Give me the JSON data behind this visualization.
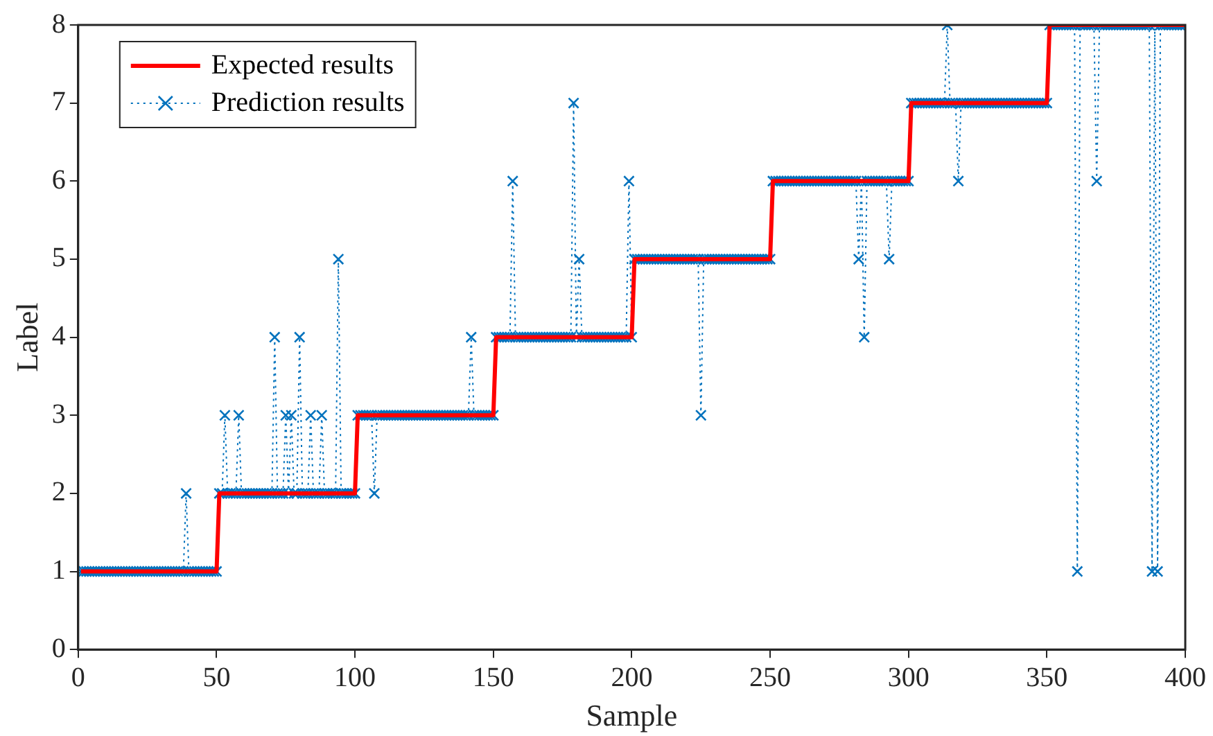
{
  "chart_data": {
    "type": "line",
    "xlabel": "Sample",
    "ylabel": "Label",
    "xlim": [
      0,
      400
    ],
    "xticks": [
      0,
      50,
      100,
      150,
      200,
      250,
      300,
      350,
      400
    ],
    "ylim": [
      0,
      8
    ],
    "yticks": [
      0,
      1,
      2,
      3,
      4,
      5,
      6,
      7,
      8
    ],
    "grid": false,
    "legend": "top left",
    "x": [
      1,
      2,
      3,
      4,
      5,
      6,
      7,
      8,
      9,
      10,
      11,
      12,
      13,
      14,
      15,
      16,
      17,
      18,
      19,
      20,
      21,
      22,
      23,
      24,
      25,
      26,
      27,
      28,
      29,
      30,
      31,
      32,
      33,
      34,
      35,
      36,
      37,
      38,
      39,
      40,
      41,
      42,
      43,
      44,
      45,
      46,
      47,
      48,
      49,
      50,
      51,
      52,
      53,
      54,
      55,
      56,
      57,
      58,
      59,
      60,
      61,
      62,
      63,
      64,
      65,
      66,
      67,
      68,
      69,
      70,
      71,
      72,
      73,
      74,
      75,
      76,
      77,
      78,
      79,
      80,
      81,
      82,
      83,
      84,
      85,
      86,
      87,
      88,
      89,
      90,
      91,
      92,
      93,
      94,
      95,
      96,
      97,
      98,
      99,
      100,
      101,
      102,
      103,
      104,
      105,
      106,
      107,
      108,
      109,
      110,
      111,
      112,
      113,
      114,
      115,
      116,
      117,
      118,
      119,
      120,
      121,
      122,
      123,
      124,
      125,
      126,
      127,
      128,
      129,
      130,
      131,
      132,
      133,
      134,
      135,
      136,
      137,
      138,
      139,
      140,
      141,
      142,
      143,
      144,
      145,
      146,
      147,
      148,
      149,
      150,
      151,
      152,
      153,
      154,
      155,
      156,
      157,
      158,
      159,
      160,
      161,
      162,
      163,
      164,
      165,
      166,
      167,
      168,
      169,
      170,
      171,
      172,
      173,
      174,
      175,
      176,
      177,
      178,
      179,
      180,
      181,
      182,
      183,
      184,
      185,
      186,
      187,
      188,
      189,
      190,
      191,
      192,
      193,
      194,
      195,
      196,
      197,
      198,
      199,
      200,
      201,
      202,
      203,
      204,
      205,
      206,
      207,
      208,
      209,
      210,
      211,
      212,
      213,
      214,
      215,
      216,
      217,
      218,
      219,
      220,
      221,
      222,
      223,
      224,
      225,
      226,
      227,
      228,
      229,
      230,
      231,
      232,
      233,
      234,
      235,
      236,
      237,
      238,
      239,
      240,
      241,
      242,
      243,
      244,
      245,
      246,
      247,
      248,
      249,
      250,
      251,
      252,
      253,
      254,
      255,
      256,
      257,
      258,
      259,
      260,
      261,
      262,
      263,
      264,
      265,
      266,
      267,
      268,
      269,
      270,
      271,
      272,
      273,
      274,
      275,
      276,
      277,
      278,
      279,
      280,
      281,
      282,
      283,
      284,
      285,
      286,
      287,
      288,
      289,
      290,
      291,
      292,
      293,
      294,
      295,
      296,
      297,
      298,
      299,
      300,
      301,
      302,
      303,
      304,
      305,
      306,
      307,
      308,
      309,
      310,
      311,
      312,
      313,
      314,
      315,
      316,
      317,
      318,
      319,
      320,
      321,
      322,
      323,
      324,
      325,
      326,
      327,
      328,
      329,
      330,
      331,
      332,
      333,
      334,
      335,
      336,
      337,
      338,
      339,
      340,
      341,
      342,
      343,
      344,
      345,
      346,
      347,
      348,
      349,
      350,
      351,
      352,
      353,
      354,
      355,
      356,
      357,
      358,
      359,
      360,
      361,
      362,
      363,
      364,
      365,
      366,
      367,
      368,
      369,
      370,
      371,
      372,
      373,
      374,
      375,
      376,
      377,
      378,
      379,
      380,
      381,
      382,
      383,
      384,
      385,
      386,
      387,
      388,
      389,
      390,
      391,
      392,
      393,
      394,
      395,
      396,
      397,
      398,
      399,
      400
    ],
    "series": [
      {
        "name": "Expected results",
        "color": "#ff0000",
        "line_style": "solid",
        "marker": "none",
        "values": [
          1,
          1,
          1,
          1,
          1,
          1,
          1,
          1,
          1,
          1,
          1,
          1,
          1,
          1,
          1,
          1,
          1,
          1,
          1,
          1,
          1,
          1,
          1,
          1,
          1,
          1,
          1,
          1,
          1,
          1,
          1,
          1,
          1,
          1,
          1,
          1,
          1,
          1,
          1,
          1,
          1,
          1,
          1,
          1,
          1,
          1,
          1,
          1,
          1,
          1,
          2,
          2,
          2,
          2,
          2,
          2,
          2,
          2,
          2,
          2,
          2,
          2,
          2,
          2,
          2,
          2,
          2,
          2,
          2,
          2,
          2,
          2,
          2,
          2,
          2,
          2,
          2,
          2,
          2,
          2,
          2,
          2,
          2,
          2,
          2,
          2,
          2,
          2,
          2,
          2,
          2,
          2,
          2,
          2,
          2,
          2,
          2,
          2,
          2,
          2,
          3,
          3,
          3,
          3,
          3,
          3,
          3,
          3,
          3,
          3,
          3,
          3,
          3,
          3,
          3,
          3,
          3,
          3,
          3,
          3,
          3,
          3,
          3,
          3,
          3,
          3,
          3,
          3,
          3,
          3,
          3,
          3,
          3,
          3,
          3,
          3,
          3,
          3,
          3,
          3,
          3,
          3,
          3,
          3,
          3,
          3,
          3,
          3,
          3,
          3,
          4,
          4,
          4,
          4,
          4,
          4,
          4,
          4,
          4,
          4,
          4,
          4,
          4,
          4,
          4,
          4,
          4,
          4,
          4,
          4,
          4,
          4,
          4,
          4,
          4,
          4,
          4,
          4,
          4,
          4,
          4,
          4,
          4,
          4,
          4,
          4,
          4,
          4,
          4,
          4,
          4,
          4,
          4,
          4,
          4,
          4,
          4,
          4,
          4,
          4,
          5,
          5,
          5,
          5,
          5,
          5,
          5,
          5,
          5,
          5,
          5,
          5,
          5,
          5,
          5,
          5,
          5,
          5,
          5,
          5,
          5,
          5,
          5,
          5,
          5,
          5,
          5,
          5,
          5,
          5,
          5,
          5,
          5,
          5,
          5,
          5,
          5,
          5,
          5,
          5,
          5,
          5,
          5,
          5,
          5,
          5,
          5,
          5,
          5,
          5,
          6,
          6,
          6,
          6,
          6,
          6,
          6,
          6,
          6,
          6,
          6,
          6,
          6,
          6,
          6,
          6,
          6,
          6,
          6,
          6,
          6,
          6,
          6,
          6,
          6,
          6,
          6,
          6,
          6,
          6,
          6,
          6,
          6,
          6,
          6,
          6,
          6,
          6,
          6,
          6,
          6,
          6,
          6,
          6,
          6,
          6,
          6,
          6,
          6,
          6,
          7,
          7,
          7,
          7,
          7,
          7,
          7,
          7,
          7,
          7,
          7,
          7,
          7,
          7,
          7,
          7,
          7,
          7,
          7,
          7,
          7,
          7,
          7,
          7,
          7,
          7,
          7,
          7,
          7,
          7,
          7,
          7,
          7,
          7,
          7,
          7,
          7,
          7,
          7,
          7,
          7,
          7,
          7,
          7,
          7,
          7,
          7,
          7,
          7,
          7,
          8,
          8,
          8,
          8,
          8,
          8,
          8,
          8,
          8,
          8,
          8,
          8,
          8,
          8,
          8,
          8,
          8,
          8,
          8,
          8,
          8,
          8,
          8,
          8,
          8,
          8,
          8,
          8,
          8,
          8,
          8,
          8,
          8,
          8,
          8,
          8,
          8,
          8,
          8,
          8,
          8,
          8,
          8,
          8,
          8,
          8,
          8,
          8,
          8,
          8
        ]
      },
      {
        "name": "Prediction results",
        "color": "#0072bd",
        "line_style": "dotted",
        "marker": "cross",
        "values": [
          1,
          1,
          1,
          1,
          1,
          1,
          1,
          1,
          1,
          1,
          1,
          1,
          1,
          1,
          1,
          1,
          1,
          1,
          1,
          1,
          1,
          1,
          1,
          1,
          1,
          1,
          1,
          1,
          1,
          1,
          1,
          1,
          1,
          1,
          1,
          1,
          1,
          1,
          2,
          1,
          1,
          1,
          1,
          1,
          1,
          1,
          1,
          1,
          1,
          1,
          2,
          2,
          3,
          2,
          2,
          2,
          2,
          3,
          2,
          2,
          2,
          2,
          2,
          2,
          2,
          2,
          2,
          2,
          2,
          2,
          4,
          2,
          2,
          2,
          3,
          2,
          3,
          2,
          2,
          4,
          2,
          2,
          2,
          3,
          2,
          2,
          2,
          3,
          2,
          2,
          2,
          2,
          2,
          5,
          2,
          2,
          2,
          2,
          2,
          2,
          3,
          3,
          3,
          3,
          3,
          3,
          2,
          3,
          3,
          3,
          3,
          3,
          3,
          3,
          3,
          3,
          3,
          3,
          3,
          3,
          3,
          3,
          3,
          3,
          3,
          3,
          3,
          3,
          3,
          3,
          3,
          3,
          3,
          3,
          3,
          3,
          3,
          3,
          3,
          3,
          3,
          4,
          3,
          3,
          3,
          3,
          3,
          3,
          3,
          3,
          4,
          4,
          4,
          4,
          4,
          4,
          6,
          4,
          4,
          4,
          4,
          4,
          4,
          4,
          4,
          4,
          4,
          4,
          4,
          4,
          4,
          4,
          4,
          4,
          4,
          4,
          4,
          4,
          7,
          4,
          5,
          4,
          4,
          4,
          4,
          4,
          4,
          4,
          4,
          4,
          4,
          4,
          4,
          4,
          4,
          4,
          4,
          4,
          6,
          4,
          5,
          5,
          5,
          5,
          5,
          5,
          5,
          5,
          5,
          5,
          5,
          5,
          5,
          5,
          5,
          5,
          5,
          5,
          5,
          5,
          5,
          5,
          5,
          5,
          3,
          5,
          5,
          5,
          5,
          5,
          5,
          5,
          5,
          5,
          5,
          5,
          5,
          5,
          5,
          5,
          5,
          5,
          5,
          5,
          5,
          5,
          5,
          5,
          5,
          5,
          6,
          6,
          6,
          6,
          6,
          6,
          6,
          6,
          6,
          6,
          6,
          6,
          6,
          6,
          6,
          6,
          6,
          6,
          6,
          6,
          6,
          6,
          6,
          6,
          6,
          6,
          6,
          6,
          6,
          6,
          6,
          5,
          6,
          4,
          6,
          6,
          6,
          6,
          6,
          6,
          6,
          6,
          5,
          6,
          6,
          6,
          6,
          6,
          6,
          6,
          7,
          7,
          7,
          7,
          7,
          7,
          7,
          7,
          7,
          7,
          7,
          7,
          7,
          8,
          7,
          7,
          7,
          6,
          7,
          7,
          7,
          7,
          7,
          7,
          7,
          7,
          7,
          7,
          7,
          7,
          7,
          7,
          7,
          7,
          7,
          7,
          7,
          7,
          7,
          7,
          7,
          7,
          7,
          7,
          7,
          7,
          7,
          7,
          7,
          7,
          8,
          8,
          8,
          8,
          8,
          8,
          8,
          8,
          8,
          8,
          1,
          8,
          8,
          8,
          8,
          8,
          8,
          6,
          8,
          8,
          8,
          8,
          8,
          8,
          8,
          8,
          8,
          8,
          8,
          8,
          8,
          8,
          8,
          8,
          8,
          8,
          8,
          1,
          8,
          1,
          8,
          8,
          8,
          8,
          8,
          8,
          8,
          8,
          8,
          8
        ]
      }
    ]
  }
}
